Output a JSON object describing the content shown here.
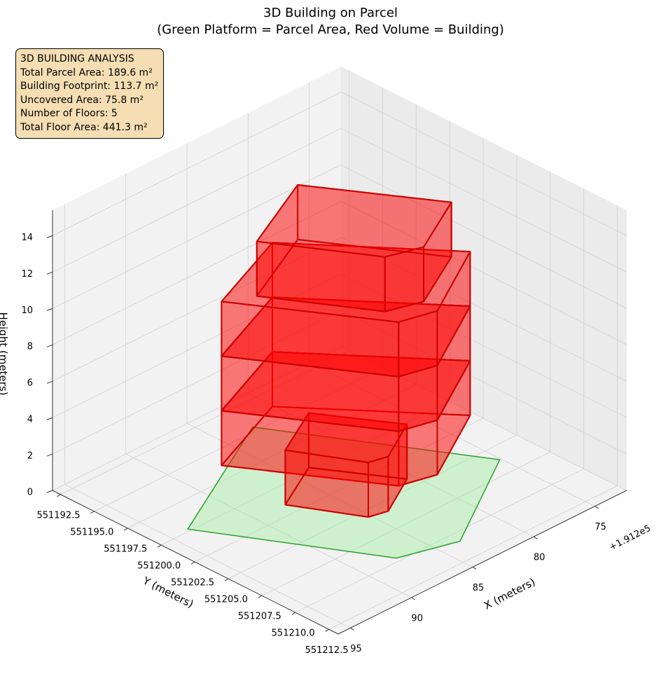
{
  "chart_data": {
    "type": "3d",
    "title": "3D Building on Parcel",
    "subtitle": "(Green Platform = Parcel Area, Red Volume = Building)",
    "info_box": [
      "3D BUILDING ANALYSIS",
      "Total Parcel Area: 189.6 m²",
      "Building Footprint: 113.7 m²",
      "Uncovered Area: 75.8 m²",
      "Number of Floors: 5",
      "Total Floor Area: 441.3 m²"
    ],
    "xlabel": "X (meters)",
    "ylabel": "Y (meters)",
    "zlabel": "Height (meters)",
    "x_offset_label": "+1.912e5",
    "xlim": [
      191272.4,
      191296
    ],
    "ylim": [
      551191.9,
      551213.2
    ],
    "zlim": [
      0,
      15.4
    ],
    "xticks": [
      {
        "value": 191275,
        "label": "75"
      },
      {
        "value": 191280,
        "label": "80"
      },
      {
        "value": 191285,
        "label": "85"
      },
      {
        "value": 191290,
        "label": "90"
      },
      {
        "value": 191295,
        "label": "95"
      }
    ],
    "yticks": [
      551192.5,
      {
        "value": 551195,
        "label": "551195.0"
      },
      551197.5,
      {
        "value": 551200,
        "label": "551200.0"
      },
      551202.5,
      {
        "value": 551205,
        "label": "551205.0"
      },
      551207.5,
      {
        "value": 551210,
        "label": "551210.0"
      },
      551212.5
    ],
    "zticks": [
      0,
      2,
      4,
      6,
      8,
      10,
      12,
      14
    ],
    "grid": true,
    "parcel": {
      "color": "#90ee90",
      "edgecolor": "#2ca02c",
      "x": [
        191282.6,
        191275.1,
        191283.4,
        191287.4,
        191293.6
      ],
      "y": [
        551194.6,
        551206.2,
        551210.8,
        551209.7,
        551199.8
      ]
    },
    "building": {
      "color": "#ff0000",
      "edgecolor": "#cc0000",
      "blocks": [
        {
          "x": [
            191287.0,
            191281.4,
            191278.9,
            191272.7,
            191280.1
          ],
          "y": [
            551196.3,
            551204.4,
            551205.0,
            551201.8,
            551193.8
          ],
          "z": [
            0,
            3
          ]
        },
        {
          "x": [
            191287.6,
            191285.2,
            191283.9,
            191280.5,
            191283.6
          ],
          "y": [
            551201.6,
            551205.6,
            551205.9,
            551204.2,
            551199.7
          ],
          "z": [
            0,
            3
          ]
        },
        {
          "x": [
            191287.0,
            191281.4,
            191278.9,
            191272.7,
            191280.1
          ],
          "y": [
            551196.3,
            551204.4,
            551205.0,
            551201.8,
            551193.8
          ],
          "z": [
            3,
            6
          ]
        },
        {
          "x": [
            191287.0,
            191281.4,
            191278.9,
            191272.7,
            191280.1
          ],
          "y": [
            551196.3,
            551204.4,
            551205.0,
            551201.8,
            551193.8
          ],
          "z": [
            6,
            9
          ]
        },
        {
          "x": [
            191285.1,
            191278.8,
            191273.9,
            191278.7,
            191281.1
          ],
          "y": [
            551197.2,
            551194.5,
            551201.5,
            551203.8,
            551203.1
          ],
          "z": [
            9,
            12
          ]
        }
      ]
    }
  }
}
